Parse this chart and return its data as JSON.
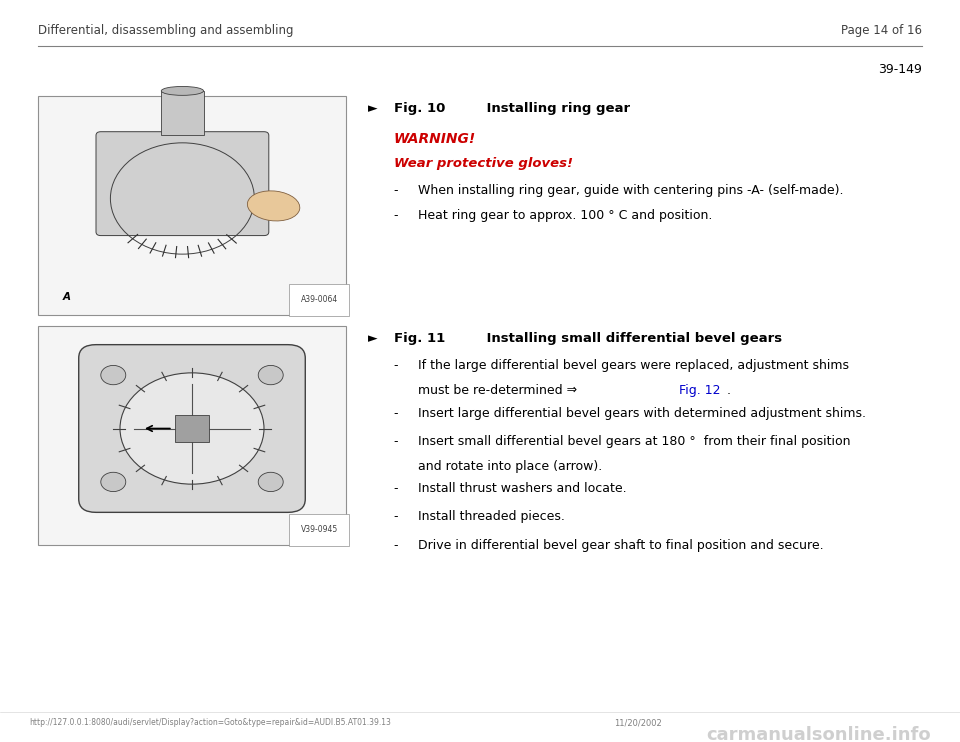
{
  "bg_color": "#ffffff",
  "page_width": 9.6,
  "page_height": 7.42,
  "header_left": "Differential, disassembling and assembling",
  "header_right": "Page 14 of 16",
  "page_number": "39-149",
  "section1": {
    "arrow_symbol": "►",
    "fig_label": "Fig. 10",
    "fig_title": "    Installing ring gear",
    "warning_text": "WARNING!",
    "warning_sub": "Wear protective gloves!",
    "bullet1": "When installing ring gear, guide with centering pins -A- (self-made).",
    "bullet2": "Heat ring gear to approx. 100 ° C and position.",
    "img_label": "A39-0064",
    "img_bottom_label": "A"
  },
  "section2": {
    "arrow_symbol": "►",
    "fig_label": "Fig. 11",
    "fig_title": "    Installing small differential bevel gears",
    "bullet1_part1": "If the large differential bevel gears were replaced, adjustment shims",
    "bullet1_part2a": "must be re-determined ⇒ ",
    "bullet1_part2b": "Fig. 12",
    "bullet1_part2c": " .",
    "bullet2": "Insert large differential bevel gears with determined adjustment shims.",
    "bullet3_line1": "Insert small differential bevel gears at 180 °  from their final position",
    "bullet3_line2": "and rotate into place (arrow).",
    "bullet4": "Install thrust washers and locate.",
    "bullet5": "Install threaded pieces.",
    "bullet6": "Drive in differential bevel gear shaft to final position and secure.",
    "img_label": "V39-0945"
  },
  "footer_url": "http://127.0.0.1:8080/audi/servlet/Display?action=Goto&type=repair&id=AUDI.B5.AT01.39.13",
  "footer_date": "11/20/2002",
  "footer_watermark": "carmanualsonline.info",
  "colors": {
    "header_text": "#404040",
    "warning_red": "#cc0000",
    "body_text": "#000000",
    "fig_title_bold": "#000000",
    "link_blue": "#0000cc",
    "footer_gray": "#808080",
    "watermark_gray": "#b0b0b0",
    "line_color": "#808080",
    "box_border": "#909090",
    "box_fill": "#f5f5f5"
  }
}
